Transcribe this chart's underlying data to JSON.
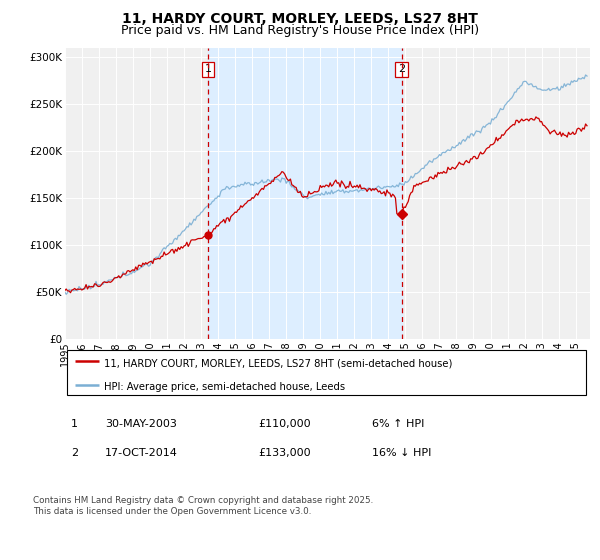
{
  "title": "11, HARDY COURT, MORLEY, LEEDS, LS27 8HT",
  "subtitle": "Price paid vs. HM Land Registry's House Price Index (HPI)",
  "ylim": [
    0,
    310000
  ],
  "xlim_start": 1995.0,
  "xlim_end": 2025.83,
  "yticks": [
    0,
    50000,
    100000,
    150000,
    200000,
    250000,
    300000
  ],
  "ytick_labels": [
    "£0",
    "£50K",
    "£100K",
    "£150K",
    "£200K",
    "£250K",
    "£300K"
  ],
  "xticks": [
    1995,
    1996,
    1997,
    1998,
    1999,
    2000,
    2001,
    2002,
    2003,
    2004,
    2005,
    2006,
    2007,
    2008,
    2009,
    2010,
    2011,
    2012,
    2013,
    2014,
    2015,
    2016,
    2017,
    2018,
    2019,
    2020,
    2021,
    2022,
    2023,
    2024,
    2025
  ],
  "sale1_x": 2003.41,
  "sale1_y": 110000,
  "sale2_x": 2014.79,
  "sale2_y": 133000,
  "shaded_start": 2003.41,
  "shaded_end": 2014.79,
  "sale_color": "#cc0000",
  "hpi_color": "#7bafd4",
  "shaded_color": "#ddeeff",
  "grid_color": "#d8d8d8",
  "plot_bg_color": "#f0f0f0",
  "legend_label_property": "11, HARDY COURT, MORLEY, LEEDS, LS27 8HT (semi-detached house)",
  "legend_label_hpi": "HPI: Average price, semi-detached house, Leeds",
  "annotation1_label": "1",
  "annotation1_date": "30-MAY-2003",
  "annotation1_price": "£110,000",
  "annotation1_change": "6% ↑ HPI",
  "annotation2_label": "2",
  "annotation2_date": "17-OCT-2014",
  "annotation2_price": "£133,000",
  "annotation2_change": "16% ↓ HPI",
  "footer": "Contains HM Land Registry data © Crown copyright and database right 2025.\nThis data is licensed under the Open Government Licence v3.0.",
  "background_color": "#ffffff",
  "title_fontsize": 10,
  "subtitle_fontsize": 9
}
